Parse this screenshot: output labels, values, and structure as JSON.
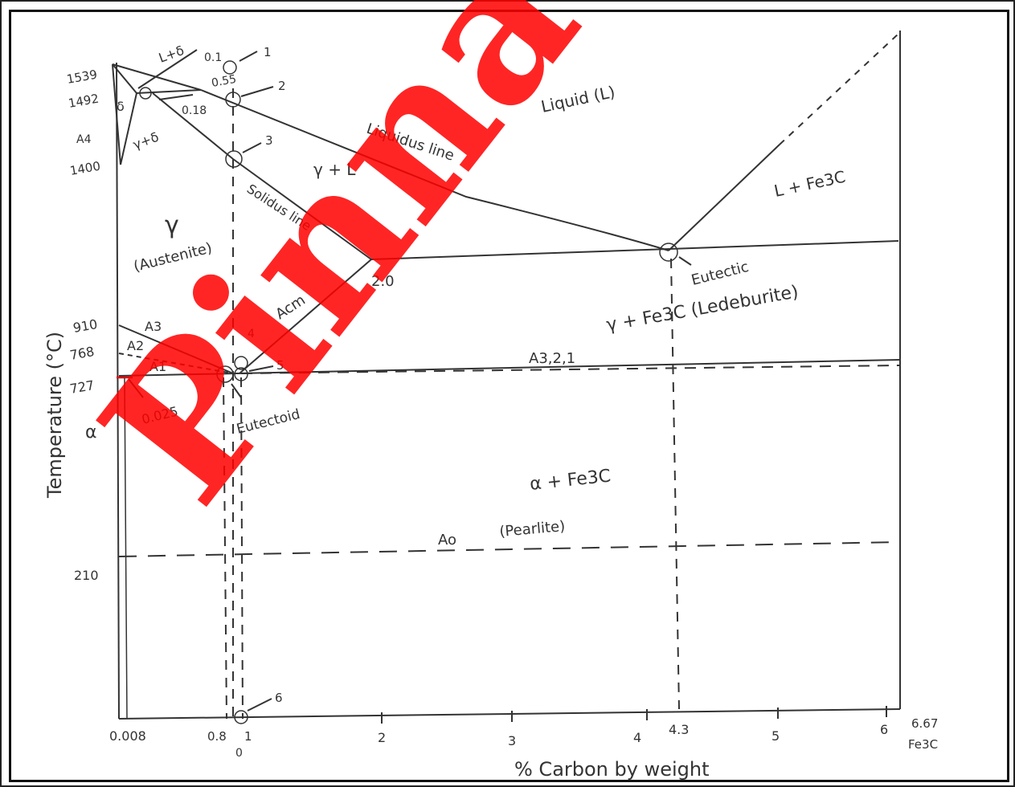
{
  "colors": {
    "ink": "#333333",
    "watermark": "#ff0000",
    "background": "#ffffff"
  },
  "watermark": "Pinnac",
  "axes": {
    "ylabel": "Temperature (°C)",
    "xlabel": "% Carbon by weight",
    "y_ticks": [
      "1539",
      "1492",
      "1400",
      "910",
      "768",
      "727",
      "210"
    ],
    "x_ticks": [
      "0.008",
      "0.8",
      "1",
      "2",
      "3",
      "4",
      "4.3",
      "5",
      "6",
      "6.67"
    ],
    "x_end_label": "Fe3C",
    "zero_label": "0"
  },
  "regions": {
    "liquid": "Liquid (L)",
    "l_fe3c": "L + Fe3C",
    "gamma_l": "γ + L",
    "gamma": "γ",
    "austenite": "(Austenite)",
    "ledeburite": "γ + Fe3C (Ledeburite)",
    "pearlite_phase": "α + Fe3C",
    "pearlite": "(Pearlite)",
    "l_delta": "L+δ",
    "gamma_delta": "γ+δ",
    "delta": "δ",
    "alpha": "α"
  },
  "lines": {
    "liquidus": "Liquidus line",
    "solidus": "Solidus line",
    "acm": "Acm",
    "a321": "A3,2,1",
    "a0": "Ao",
    "a3": "A3",
    "a2": "A2",
    "a1": "A1",
    "a4": "A4"
  },
  "points": {
    "eutectic": "Eutectic",
    "eutectoid": "Eutectoid",
    "c_2_0": "2.0",
    "c_0_025": "0.025",
    "c_0_1": "0.1",
    "c_0_55": "0.55",
    "c_0_18": "0.18",
    "n1": "1",
    "n2": "2",
    "n3": "3",
    "n4": "4",
    "n5": "5",
    "n6": "6"
  }
}
